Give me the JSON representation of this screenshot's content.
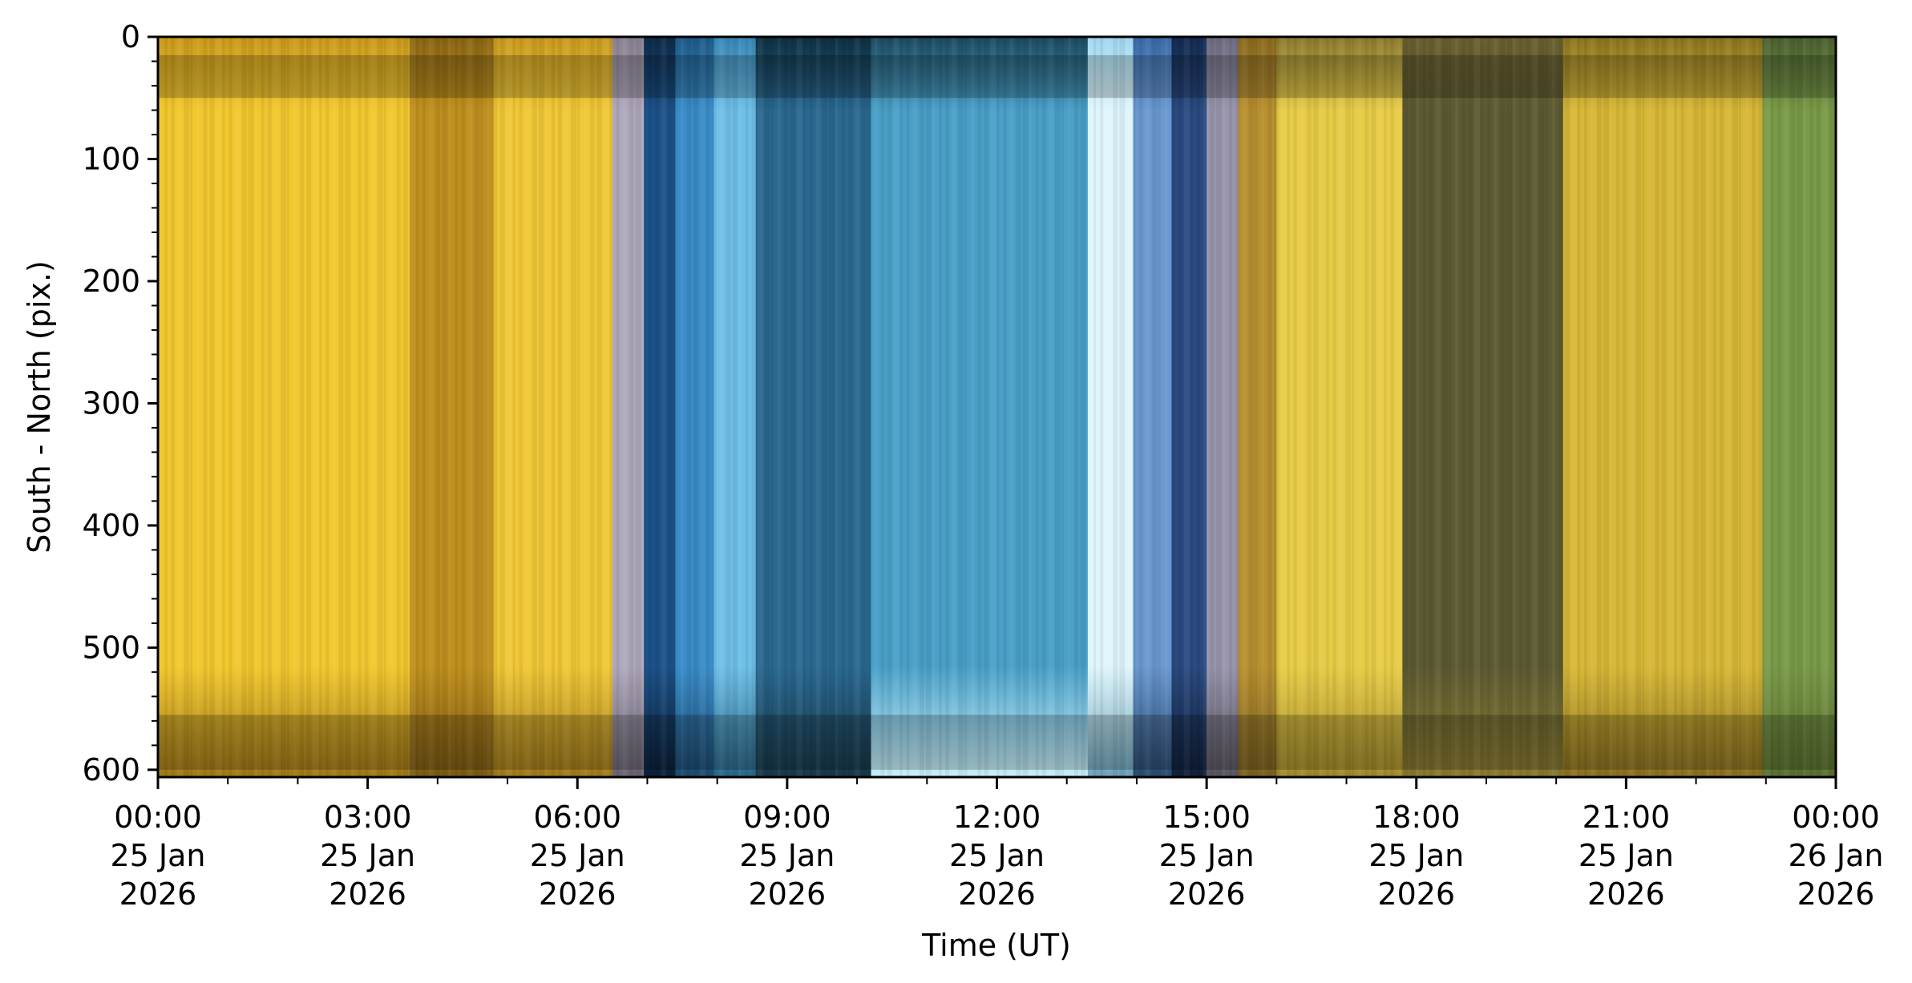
{
  "chart_data": {
    "type": "heatmap",
    "title": "",
    "xlabel": "Time (UT)",
    "ylabel": "South - North (pix.)",
    "xlim_hours": [
      0,
      24
    ],
    "ylim": [
      606,
      0
    ],
    "y_ticks": [
      0,
      100,
      200,
      300,
      400,
      500,
      600
    ],
    "y_tick_labels": [
      "0",
      "100",
      "200",
      "300",
      "400",
      "500",
      "600"
    ],
    "y_minor_step": 20,
    "x_ticks_hours": [
      0,
      3,
      6,
      9,
      12,
      15,
      18,
      21,
      24
    ],
    "x_tick_labels": [
      [
        "00:00",
        "25 Jan",
        "2026"
      ],
      [
        "03:00",
        "25 Jan",
        "2026"
      ],
      [
        "06:00",
        "25 Jan",
        "2026"
      ],
      [
        "09:00",
        "25 Jan",
        "2026"
      ],
      [
        "12:00",
        "25 Jan",
        "2026"
      ],
      [
        "15:00",
        "25 Jan",
        "2026"
      ],
      [
        "18:00",
        "25 Jan",
        "2026"
      ],
      [
        "21:00",
        "25 Jan",
        "2026"
      ],
      [
        "00:00",
        "26 Jan",
        "2026"
      ]
    ],
    "x_minor_step_hours": 1,
    "bands": [
      {
        "start": 0.0,
        "end": 3.6,
        "top": "#c99a1c",
        "mid": "#f2c830",
        "bottom": "#a07818"
      },
      {
        "start": 3.6,
        "end": 4.8,
        "top": "#8a6614",
        "mid": "#c0901e",
        "bottom": "#7a5a14"
      },
      {
        "start": 4.8,
        "end": 6.5,
        "top": "#c89a20",
        "mid": "#f0c838",
        "bottom": "#a07a1c"
      },
      {
        "start": 6.5,
        "end": 6.95,
        "top": "#8a8290",
        "mid": "#b0a8bc",
        "bottom": "#6a6470"
      },
      {
        "start": 6.95,
        "end": 7.4,
        "top": "#0e2a48",
        "mid": "#1c5288",
        "bottom": "#0c2038"
      },
      {
        "start": 7.4,
        "end": 7.95,
        "top": "#1e5a88",
        "mid": "#3a8cc8",
        "bottom": "#1c4a70"
      },
      {
        "start": 7.95,
        "end": 8.55,
        "top": "#3a88b8",
        "mid": "#70c0e8",
        "bottom": "#2a6888"
      },
      {
        "start": 8.55,
        "end": 10.2,
        "top": "#0e3040",
        "mid": "#2a6890",
        "bottom": "#183848"
      },
      {
        "start": 10.2,
        "end": 13.3,
        "top": "#1c4a60",
        "mid": "#4aa0c8",
        "bottom": "#c8f0f8"
      },
      {
        "start": 13.3,
        "end": 13.95,
        "top": "#a0d8f0",
        "mid": "#e0f6fc",
        "bottom": "#6aa0b8"
      },
      {
        "start": 13.95,
        "end": 14.5,
        "top": "#3a6aa8",
        "mid": "#6a98d0",
        "bottom": "#2a4a70"
      },
      {
        "start": 14.5,
        "end": 15.0,
        "top": "#142a50",
        "mid": "#2a4a80",
        "bottom": "#10203a"
      },
      {
        "start": 15.0,
        "end": 15.45,
        "top": "#706c80",
        "mid": "#9a96ae",
        "bottom": "#5a5660"
      },
      {
        "start": 15.45,
        "end": 16.0,
        "top": "#8a6a20",
        "mid": "#b89030",
        "bottom": "#7a6020"
      },
      {
        "start": 16.0,
        "end": 17.8,
        "top": "#8a7a30",
        "mid": "#e8cc48",
        "bottom": "#a08a2a"
      },
      {
        "start": 17.8,
        "end": 20.1,
        "top": "#6a6030",
        "mid": "#5c5a32",
        "bottom": "#8a7a30"
      },
      {
        "start": 20.1,
        "end": 22.95,
        "top": "#8a7420",
        "mid": "#d8b838",
        "bottom": "#8a7020"
      },
      {
        "start": 22.95,
        "end": 24.0,
        "top": "#4a6030",
        "mid": "#7a9a48",
        "bottom": "#5a7030"
      }
    ],
    "dark_rows": [
      [
        15,
        50
      ],
      [
        555,
        600
      ]
    ]
  }
}
